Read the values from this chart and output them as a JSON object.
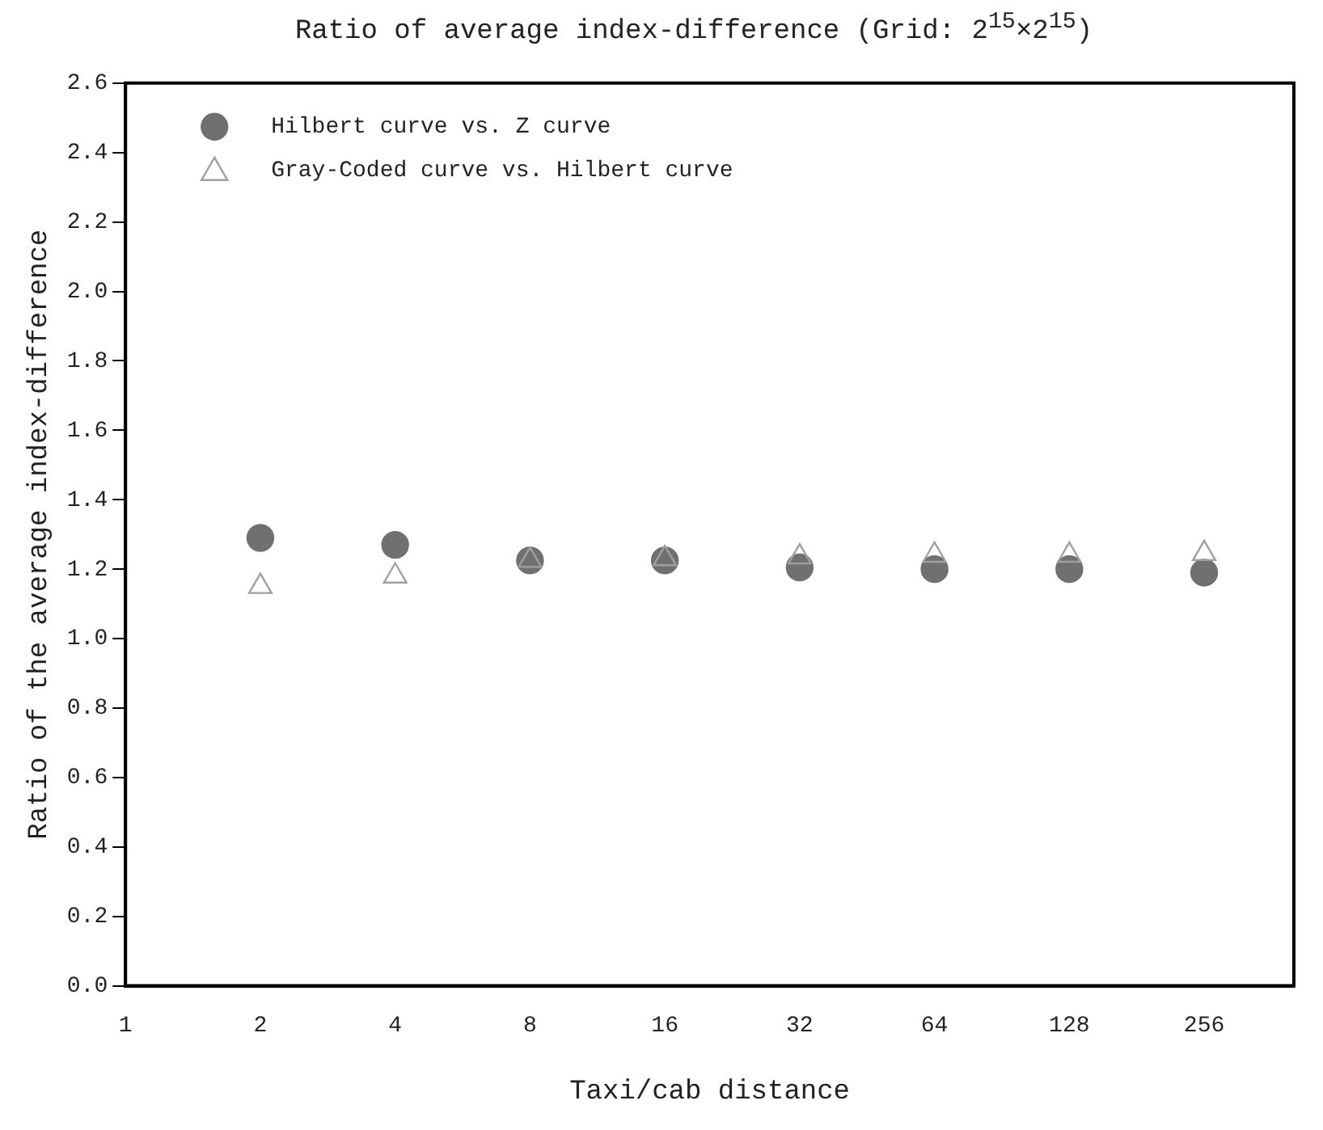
{
  "chart_data": {
    "type": "scatter",
    "title": "Ratio of average index-difference (Grid: 2$^{15}$×2$^{15}$)",
    "xlabel": "Taxi/cab distance",
    "ylabel": "Ratio of the average index-difference",
    "x": [
      2,
      4,
      8,
      16,
      32,
      64,
      128,
      256
    ],
    "series": [
      {
        "name": "Hilbert curve vs. Z curve",
        "color": "#707070",
        "marker": "circle",
        "values": [
          1.29,
          1.27,
          1.225,
          1.225,
          1.205,
          1.2,
          1.2,
          1.19
        ]
      },
      {
        "name": "Gray-Coded curve vs. Hilbert curve",
        "color": "#a0a0a0",
        "marker": "triangle",
        "values": [
          1.15,
          1.18,
          1.225,
          1.23,
          1.235,
          1.24,
          1.24,
          1.245
        ]
      }
    ],
    "log": "x",
    "xlim": [
      1,
      406
    ],
    "xticks": [
      1,
      2,
      4,
      8,
      16,
      32,
      64,
      128,
      256
    ],
    "ylim": [
      0,
      2.6
    ],
    "yticks": [
      {
        "value": 0,
        "label": "0.0"
      },
      0.2,
      0.4,
      0.6,
      0.8,
      {
        "value": 1,
        "label": "1.0"
      },
      1.2,
      1.4,
      1.6,
      1.8,
      {
        "value": 2,
        "label": "2.0"
      },
      2.2,
      2.4,
      2.6
    ],
    "grid": false,
    "legend": "top left"
  }
}
